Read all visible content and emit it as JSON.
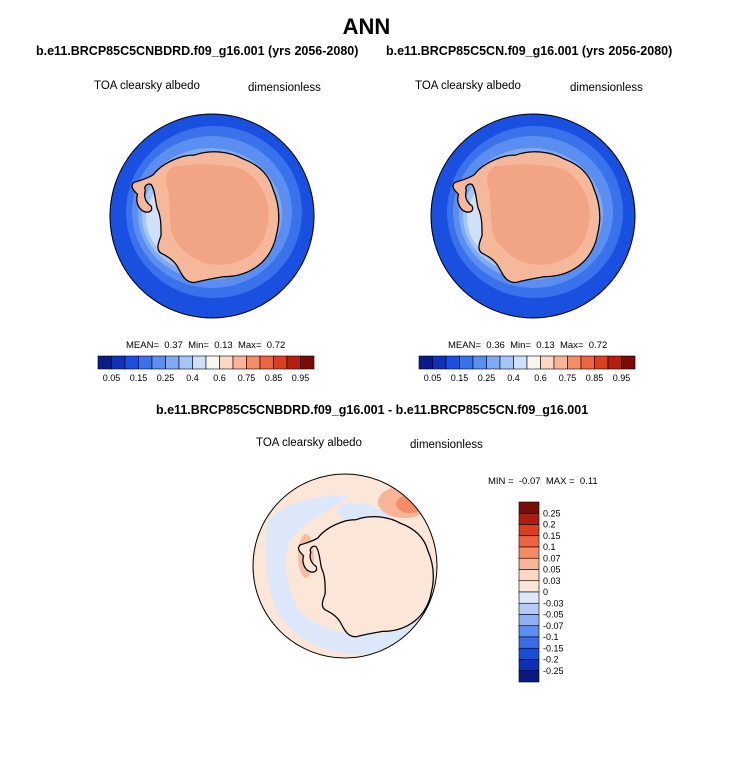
{
  "season": "ANN",
  "colors": {
    "ocean_dark": "#1a50e0",
    "ocean_mid": "#5a8ef0",
    "ocean_light": "#9cc0f6",
    "sea_ice": "#d8e8fa",
    "land": "#f6b89a",
    "plateau": "#f2a486"
  },
  "panels": [
    {
      "id": "left",
      "case": "b.e11.BRCP85C5CNBDRD.f09_g16.001 (yrs 2056-2080)",
      "variable": "TOA clearsky albedo",
      "units": "dimensionless",
      "stats": {
        "mean_label": "MEAN=",
        "mean": "0.37",
        "min_label": "Min=",
        "min": "0.13",
        "max_label": "Max=",
        "max": "0.72"
      }
    },
    {
      "id": "right",
      "case": "b.e11.BRCP85C5CN.f09_g16.001 (yrs 2056-2080)",
      "variable": "TOA clearsky albedo",
      "units": "dimensionless",
      "stats": {
        "mean_label": "MEAN=",
        "mean": "0.36",
        "min_label": "Min=",
        "min": "0.13",
        "max_label": "Max=",
        "max": "0.72"
      }
    }
  ],
  "difference": {
    "title": "b.e11.BRCP85C5CNBDRD.f09_g16.001 - b.e11.BRCP85C5CN.f09_g16.001",
    "variable": "TOA clearsky albedo",
    "units": "dimensionless",
    "stats": {
      "min_label": "MIN =",
      "min": "-0.07",
      "max_label": "MAX =",
      "max": "0.11"
    }
  },
  "chart_data": [
    {
      "type": "heatmap",
      "title": "b.e11.BRCP85C5CNBDRD.f09_g16.001 (yrs 2056-2080)",
      "projection": "south-polar-stereographic",
      "variable": "TOA clearsky albedo",
      "units": "dimensionless",
      "mean": 0.37,
      "min": 0.13,
      "max": 0.72,
      "colorbar": {
        "orientation": "horizontal",
        "levels": [
          0.05,
          0.1,
          0.15,
          0.2,
          0.25,
          0.3,
          0.4,
          0.5,
          0.6,
          0.7,
          0.75,
          0.8,
          0.85,
          0.9,
          0.95
        ],
        "tick_labels": [
          "0.05",
          "0.15",
          "0.25",
          "0.4",
          "0.6",
          "0.75",
          "0.85",
          "0.95"
        ],
        "colors": [
          "#0a1a8c",
          "#1030b8",
          "#1a50e0",
          "#3a72ec",
          "#5a8ef0",
          "#80aaf4",
          "#a6c6f8",
          "#cfe0fa",
          "#f8f4f0",
          "#fcd8c4",
          "#f8b496",
          "#f48c68",
          "#ec6440",
          "#d8401e",
          "#b42010",
          "#7a0c08"
        ]
      }
    },
    {
      "type": "heatmap",
      "title": "b.e11.BRCP85C5CN.f09_g16.001 (yrs 2056-2080)",
      "projection": "south-polar-stereographic",
      "variable": "TOA clearsky albedo",
      "units": "dimensionless",
      "mean": 0.36,
      "min": 0.13,
      "max": 0.72,
      "colorbar": {
        "orientation": "horizontal",
        "levels": [
          0.05,
          0.1,
          0.15,
          0.2,
          0.25,
          0.3,
          0.4,
          0.5,
          0.6,
          0.7,
          0.75,
          0.8,
          0.85,
          0.9,
          0.95
        ],
        "tick_labels": [
          "0.05",
          "0.15",
          "0.25",
          "0.4",
          "0.6",
          "0.75",
          "0.85",
          "0.95"
        ],
        "colors": [
          "#0a1a8c",
          "#1030b8",
          "#1a50e0",
          "#3a72ec",
          "#5a8ef0",
          "#80aaf4",
          "#a6c6f8",
          "#cfe0fa",
          "#f8f4f0",
          "#fcd8c4",
          "#f8b496",
          "#f48c68",
          "#ec6440",
          "#d8401e",
          "#b42010",
          "#7a0c08"
        ]
      }
    },
    {
      "type": "heatmap",
      "title": "b.e11.BRCP85C5CNBDRD.f09_g16.001 - b.e11.BRCP85C5CN.f09_g16.001",
      "projection": "south-polar-stereographic",
      "variable": "TOA clearsky albedo",
      "units": "dimensionless",
      "min": -0.07,
      "max": 0.11,
      "colorbar": {
        "orientation": "vertical",
        "tick_labels": [
          "0.25",
          "0.2",
          "0.15",
          "0.1",
          "0.07",
          "0.05",
          "0.03",
          "0",
          "-0.03",
          "-0.05",
          "-0.07",
          "-0.1",
          "-0.15",
          "-0.2",
          "-0.25"
        ],
        "colors": [
          "#7a0c08",
          "#b01c0e",
          "#d8401e",
          "#ec6440",
          "#f48c68",
          "#f8b496",
          "#fcd6c2",
          "#fbe6d8",
          "#dce8fa",
          "#b4ccf6",
          "#8cb0f2",
          "#5a8ef0",
          "#3a6ee8",
          "#1a4cd8",
          "#1030b0",
          "#0a1a80"
        ]
      }
    }
  ]
}
